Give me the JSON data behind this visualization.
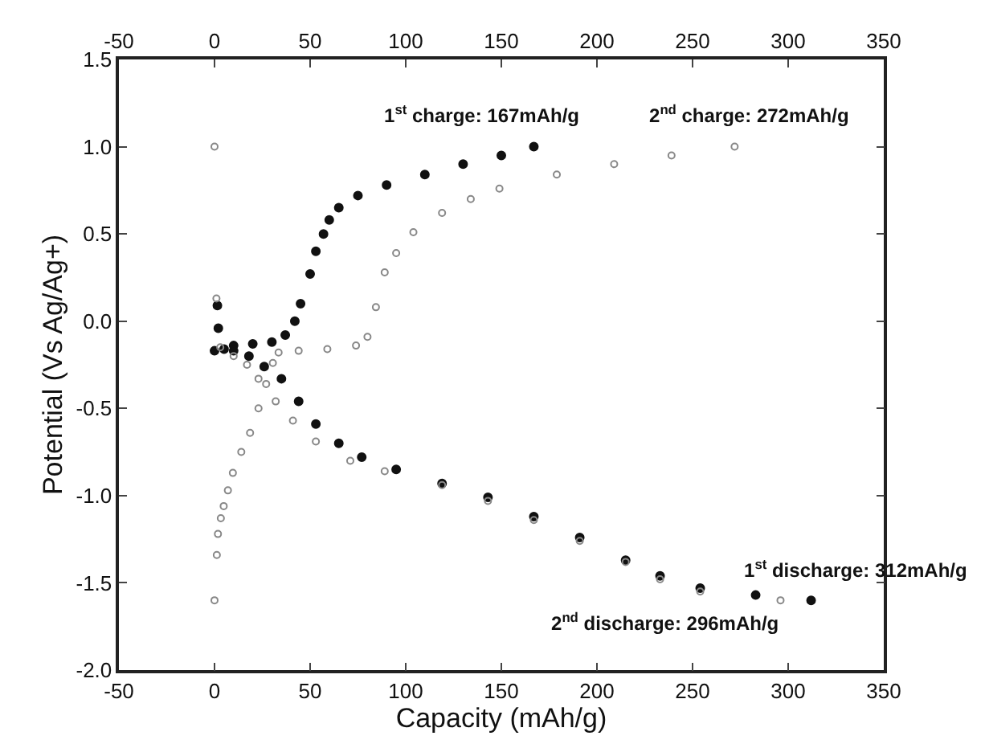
{
  "chart_data": {
    "type": "scatter",
    "xlabel": "Capacity (mAh/g)",
    "ylabel": "Potential (Vs Ag/Ag+)",
    "xlim": [
      -50,
      350
    ],
    "xticks": [
      -50,
      0,
      50,
      100,
      150,
      200,
      250,
      300,
      350
    ],
    "x2lim": [
      -50,
      350
    ],
    "x2ticks": [
      -50,
      0,
      50,
      100,
      150,
      200,
      250,
      300,
      350
    ],
    "ylim": [
      -2.0,
      1.5
    ],
    "yticks": [
      {
        "value": -2.0,
        "label": "-2.0"
      },
      {
        "value": -1.5,
        "label": "-1.5"
      },
      {
        "value": -1.0,
        "label": "-1.0"
      },
      {
        "value": -0.5,
        "label": "-0.5"
      },
      {
        "value": 0.0,
        "label": "0.0"
      },
      {
        "value": 0.5,
        "label": "0.5"
      },
      {
        "value": 1.0,
        "label": "1.0"
      },
      {
        "value": 1.5,
        "label": "1.5"
      }
    ],
    "series": [
      {
        "color": "#111111",
        "marker": "circle",
        "x": [
          0,
          10,
          20,
          30,
          37,
          42,
          45,
          50,
          53,
          57,
          60,
          65,
          75,
          90,
          110,
          130,
          150,
          167
        ],
        "values": [
          -0.17,
          -0.14,
          -0.13,
          -0.12,
          -0.08,
          0.0,
          0.1,
          0.27,
          0.4,
          0.5,
          0.58,
          0.65,
          0.72,
          0.78,
          0.84,
          0.9,
          0.95,
          1.0
        ]
      },
      {
        "color": "#888888",
        "marker": "circle-open",
        "x": [
          0,
          1.2,
          1.8,
          3.3,
          4.8,
          7,
          9.6,
          14,
          18.6,
          23,
          27,
          30.5,
          33.5,
          44,
          59,
          74,
          80,
          84.4,
          89,
          95,
          104,
          119,
          134,
          149,
          179,
          209,
          239,
          272
        ],
        "values": [
          -1.6,
          -1.34,
          -1.22,
          -1.13,
          -1.06,
          -0.97,
          -0.87,
          -0.75,
          -0.64,
          -0.5,
          -0.36,
          -0.24,
          -0.18,
          -0.17,
          -0.16,
          -0.14,
          -0.09,
          0.08,
          0.28,
          0.39,
          0.51,
          0.62,
          0.7,
          0.76,
          0.84,
          0.9,
          0.95,
          1.0
        ]
      },
      {
        "color": "#111111",
        "marker": "circle",
        "x": [
          1.5,
          2,
          5,
          10,
          18,
          26,
          35,
          44,
          53,
          65,
          77,
          95,
          119,
          143,
          167,
          191,
          215,
          233,
          254,
          283,
          312
        ],
        "values": [
          0.09,
          -0.04,
          -0.16,
          -0.17,
          -0.2,
          -0.26,
          -0.33,
          -0.46,
          -0.59,
          -0.7,
          -0.78,
          -0.85,
          -0.93,
          -1.01,
          -1.12,
          -1.24,
          -1.37,
          -1.46,
          -1.53,
          -1.57,
          -1.6
        ]
      },
      {
        "color": "#888888",
        "marker": "circle-open",
        "x": [
          0,
          1,
          3,
          10,
          17,
          23,
          32,
          41,
          53,
          71,
          89,
          119,
          143,
          167,
          191,
          215,
          233,
          254,
          296
        ],
        "values": [
          1.0,
          0.13,
          -0.15,
          -0.2,
          -0.25,
          -0.33,
          -0.46,
          -0.57,
          -0.69,
          -0.8,
          -0.86,
          -0.94,
          -1.03,
          -1.14,
          -1.26,
          -1.38,
          -1.48,
          -1.55,
          -1.6
        ]
      }
    ],
    "annotations": [
      "1$^{st}$ charge: 167mAh/g",
      "2$^{nd}$ charge: 272mAh/g",
      "1$^{st}$ discharge: 312mAh/g",
      "2$^{nd}$ discharge: 296mAh/g"
    ]
  }
}
